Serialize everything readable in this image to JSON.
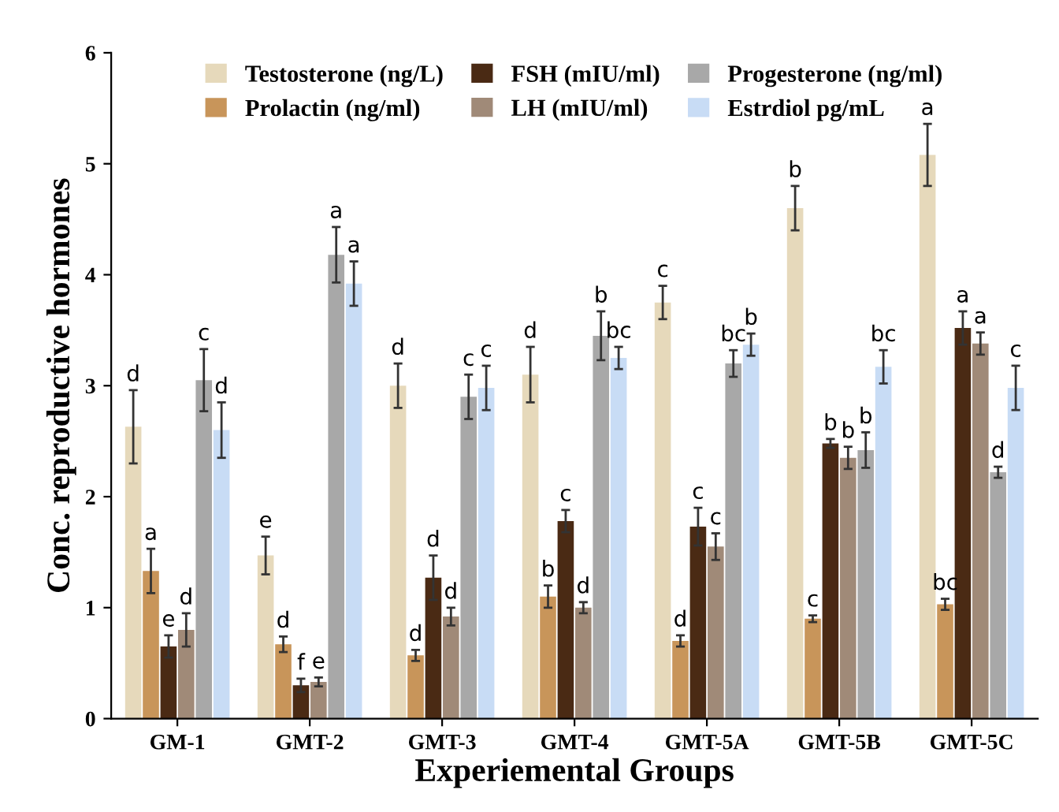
{
  "chart_data": {
    "type": "bar",
    "xlabel": "Experiemental Groups",
    "ylabel": "Conc. reproductive hormones",
    "categories": [
      "GM-1",
      "GMT-2",
      "GMT-3",
      "GMT-4",
      "GMT-5A",
      "GMT-5B",
      "GMT-5C"
    ],
    "ylim": [
      0,
      6
    ],
    "yticks": [
      0,
      1,
      2,
      3,
      4,
      5,
      6
    ],
    "grid": false,
    "legend": "top",
    "series": [
      {
        "name": "Testosterone (ng/L)",
        "color": "#e6d9bb",
        "values": [
          2.63,
          1.47,
          3.0,
          3.1,
          3.75,
          4.6,
          5.08
        ],
        "errors": [
          0.33,
          0.17,
          0.2,
          0.25,
          0.15,
          0.2,
          0.28
        ],
        "value_labels": [
          "d",
          "e",
          "d",
          "d",
          "c",
          "b",
          "a"
        ]
      },
      {
        "name": "Prolactin (ng/ml)",
        "color": "#c8955a",
        "values": [
          1.33,
          0.67,
          0.57,
          1.1,
          0.7,
          0.9,
          1.03
        ],
        "errors": [
          0.2,
          0.07,
          0.05,
          0.1,
          0.05,
          0.03,
          0.05
        ],
        "value_labels": [
          "a",
          "d",
          "d",
          "b",
          "d",
          "c",
          "bc"
        ]
      },
      {
        "name": "FSH (mIU/ml)",
        "color": "#4a2a14",
        "values": [
          0.65,
          0.3,
          1.27,
          1.78,
          1.73,
          2.48,
          3.52
        ],
        "errors": [
          0.1,
          0.06,
          0.2,
          0.1,
          0.17,
          0.04,
          0.15
        ],
        "value_labels": [
          "e",
          "f",
          "d",
          "c",
          "c",
          "b",
          "a"
        ]
      },
      {
        "name": "LH (mIU/ml)",
        "color": "#a08a78",
        "values": [
          0.8,
          0.33,
          0.92,
          1.0,
          1.55,
          2.35,
          3.38
        ],
        "errors": [
          0.15,
          0.04,
          0.08,
          0.05,
          0.12,
          0.1,
          0.1
        ],
        "value_labels": [
          "d",
          "e",
          "d",
          "d",
          "c",
          "b",
          "a"
        ]
      },
      {
        "name": "Progesterone (ng/ml)",
        "color": "#a8a8a8",
        "values": [
          3.05,
          4.18,
          2.9,
          3.45,
          3.2,
          2.42,
          2.22
        ],
        "errors": [
          0.28,
          0.25,
          0.2,
          0.22,
          0.12,
          0.16,
          0.05
        ],
        "value_labels": [
          "c",
          "a",
          "c",
          "b",
          "bc",
          "b",
          "d"
        ]
      },
      {
        "name": "Estrdiol pg/mL",
        "color": "#c8dcf5",
        "values": [
          2.6,
          3.92,
          2.98,
          3.25,
          3.37,
          3.17,
          2.98
        ],
        "errors": [
          0.25,
          0.2,
          0.2,
          0.1,
          0.1,
          0.15,
          0.2
        ],
        "value_labels": [
          "d",
          "a",
          "c",
          "bc",
          "b",
          "bc",
          "c"
        ]
      }
    ]
  }
}
